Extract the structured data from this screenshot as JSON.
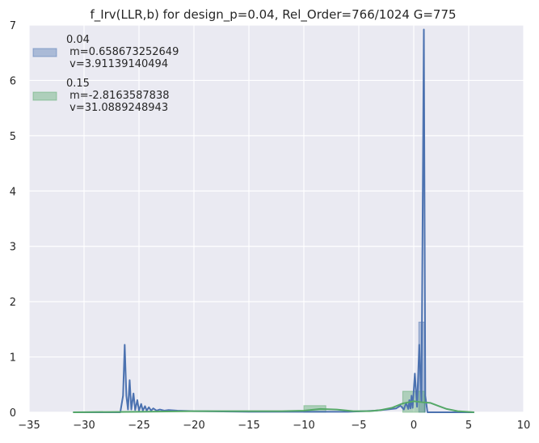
{
  "chart_data": {
    "type": "line",
    "title": "f_Irv(LLR,b) for design_p=0.04, Rel_Order=766/1024 G=775",
    "xlabel": "",
    "ylabel": "",
    "xlim": [
      -35,
      10
    ],
    "ylim": [
      0,
      7
    ],
    "x_ticks": [
      "−35",
      "−30",
      "−25",
      "−20",
      "−15",
      "−10",
      "−5",
      "0",
      "5",
      "10"
    ],
    "y_ticks": [
      "0",
      "1",
      "2",
      "3",
      "4",
      "5",
      "6",
      "7"
    ],
    "grid": true,
    "legend_position": "top-left",
    "colors": {
      "series_a": "#4c72b0",
      "series_b": "#55a868",
      "background": "#eaeaf2",
      "grid": "#ffffff"
    },
    "series": [
      {
        "name": "0.04",
        "legend_lines": [
          "0.04",
          " m=0.658673252649",
          " v=3.91139140494"
        ],
        "kde": [
          [
            -31,
            0
          ],
          [
            -26.7,
            0
          ],
          [
            -26.45,
            0.3
          ],
          [
            -26.3,
            1.22
          ],
          [
            -26.15,
            0.3
          ],
          [
            -26.0,
            0.05
          ],
          [
            -25.85,
            0.58
          ],
          [
            -25.7,
            0.05
          ],
          [
            -25.5,
            0.34
          ],
          [
            -25.35,
            0.04
          ],
          [
            -25.15,
            0.22
          ],
          [
            -25.0,
            0.03
          ],
          [
            -24.8,
            0.15
          ],
          [
            -24.65,
            0.03
          ],
          [
            -24.45,
            0.11
          ],
          [
            -24.3,
            0.03
          ],
          [
            -24.1,
            0.09
          ],
          [
            -23.9,
            0.03
          ],
          [
            -23.7,
            0.07
          ],
          [
            -23.4,
            0.03
          ],
          [
            -23.1,
            0.05
          ],
          [
            -22.7,
            0.03
          ],
          [
            -22.3,
            0.04
          ],
          [
            -21.5,
            0.03
          ],
          [
            -20,
            0.02
          ],
          [
            -15,
            0.01
          ],
          [
            -10,
            0.01
          ],
          [
            -6,
            0.01
          ],
          [
            -4.5,
            0.02
          ],
          [
            -3.5,
            0.03
          ],
          [
            -2.5,
            0.05
          ],
          [
            -1.6,
            0.07
          ],
          [
            -1.2,
            0.12
          ],
          [
            -0.9,
            0.05
          ],
          [
            -0.7,
            0.17
          ],
          [
            -0.5,
            0.06
          ],
          [
            -0.4,
            0.22
          ],
          [
            -0.3,
            0.07
          ],
          [
            -0.2,
            0.3
          ],
          [
            -0.1,
            0.08
          ],
          [
            0.1,
            0.7
          ],
          [
            0.3,
            0.1
          ],
          [
            0.5,
            1.22
          ],
          [
            0.7,
            0.2
          ],
          [
            0.92,
            6.92
          ],
          [
            1.05,
            0.3
          ],
          [
            1.25,
            0
          ],
          [
            5.5,
            0
          ]
        ],
        "hist": [
          {
            "x0": 0.46,
            "x1": 0.98,
            "height": 1.63
          },
          {
            "x0": 0.98,
            "x1": 1.04,
            "height": 0.32
          }
        ]
      },
      {
        "name": "0.15",
        "legend_lines": [
          "0.15",
          " m=-2.8163587838",
          " v=31.0889248943"
        ],
        "kde": [
          [
            -31,
            0
          ],
          [
            -25,
            0.01
          ],
          [
            -20,
            0.02
          ],
          [
            -15,
            0.02
          ],
          [
            -12,
            0.02
          ],
          [
            -10,
            0.03
          ],
          [
            -8.5,
            0.06
          ],
          [
            -7,
            0.05
          ],
          [
            -5.5,
            0.02
          ],
          [
            -4,
            0.02
          ],
          [
            -3,
            0.04
          ],
          [
            -2,
            0.08
          ],
          [
            -1,
            0.16
          ],
          [
            0,
            0.2
          ],
          [
            0.8,
            0.18
          ],
          [
            1.5,
            0.17
          ],
          [
            2.3,
            0.11
          ],
          [
            3,
            0.06
          ],
          [
            4,
            0.02
          ],
          [
            5.5,
            0
          ]
        ],
        "hist": [
          {
            "x0": -10.0,
            "x1": -8.0,
            "height": 0.12
          },
          {
            "x0": -1.0,
            "x1": 1.0,
            "height": 0.38
          }
        ]
      }
    ]
  }
}
